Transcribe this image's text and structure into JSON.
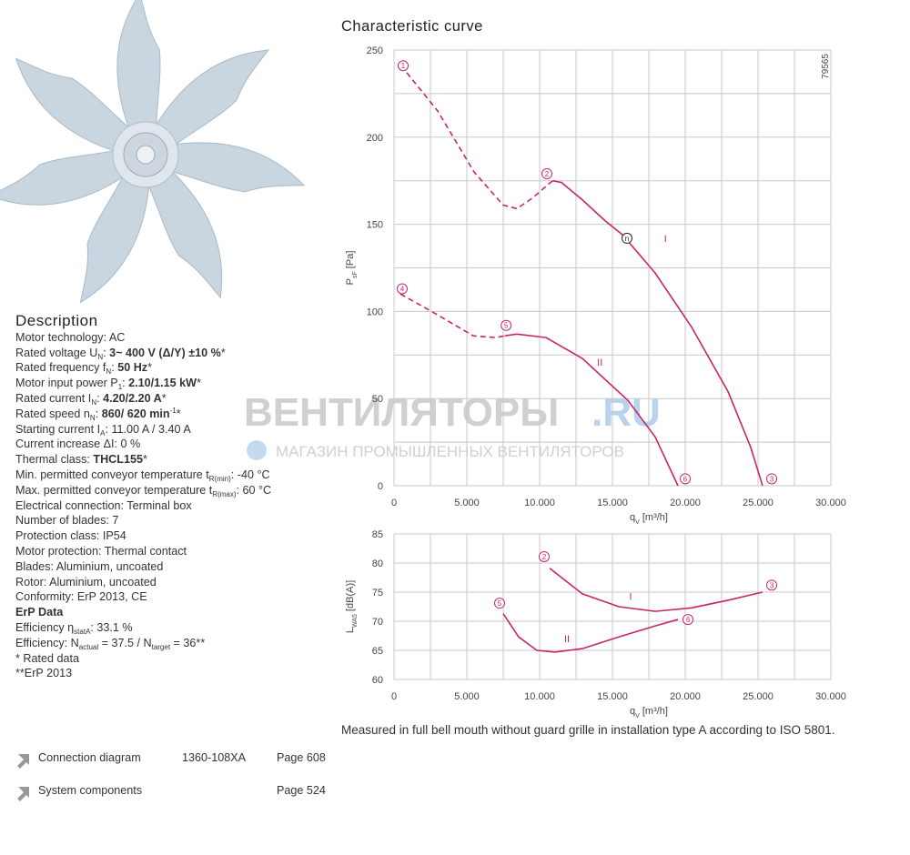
{
  "description": {
    "title": "Description",
    "lines": [
      [
        [
          "n",
          "Motor technology: AC"
        ]
      ],
      [
        [
          "n",
          "Rated voltage U"
        ],
        [
          "sub",
          "N"
        ],
        [
          "n",
          ": "
        ],
        [
          "b",
          "3~ 400 V (Δ/Y) ±10 %"
        ],
        [
          "n",
          "*"
        ]
      ],
      [
        [
          "n",
          "Rated frequency f"
        ],
        [
          "sub",
          "N"
        ],
        [
          "n",
          ": "
        ],
        [
          "b",
          "50 Hz"
        ],
        [
          "n",
          "*"
        ]
      ],
      [
        [
          "n",
          "Motor input power P"
        ],
        [
          "sub",
          "1"
        ],
        [
          "n",
          ": "
        ],
        [
          "b",
          "2.10/1.15 kW"
        ],
        [
          "n",
          "*"
        ]
      ],
      [
        [
          "n",
          "Rated current I"
        ],
        [
          "sub",
          "N"
        ],
        [
          "n",
          ": "
        ],
        [
          "b",
          "4.20/2.20 A"
        ],
        [
          "n",
          "*"
        ]
      ],
      [
        [
          "n",
          "Rated speed n"
        ],
        [
          "sub",
          "N"
        ],
        [
          "n",
          ": "
        ],
        [
          "b",
          "860/ 620 min"
        ],
        [
          "sup",
          "-1"
        ],
        [
          "n",
          "*"
        ]
      ],
      [
        [
          "n",
          "Starting current I"
        ],
        [
          "sub",
          "A"
        ],
        [
          "n",
          ": 11.00 A / 3.40 A"
        ]
      ],
      [
        [
          "n",
          "Current increase ΔI: 0 %"
        ]
      ],
      [
        [
          "n",
          "Thermal class: "
        ],
        [
          "b",
          "THCL155"
        ],
        [
          "n",
          "*"
        ]
      ],
      [
        [
          "n",
          "Min. permitted conveyor temperature t"
        ],
        [
          "sub",
          "R(min)"
        ],
        [
          "n",
          ": -40 °C"
        ]
      ],
      [
        [
          "n",
          "Max. permitted conveyor temperature t"
        ],
        [
          "sub",
          "R(max)"
        ],
        [
          "n",
          ": 60 °C"
        ]
      ],
      [
        [
          "n",
          "Electrical connection: Terminal box"
        ]
      ],
      [
        [
          "n",
          "Number of blades: 7"
        ]
      ],
      [
        [
          "n",
          "Protection class: IP54"
        ]
      ],
      [
        [
          "n",
          "Motor protection: Thermal contact"
        ]
      ],
      [
        [
          "n",
          "Blades: Aluminium, uncoated"
        ]
      ],
      [
        [
          "n",
          "Rotor: Aluminium, uncoated"
        ]
      ],
      [
        [
          "n",
          "Conformity: ErP 2013, CE"
        ]
      ],
      [
        [
          "b",
          "ErP Data"
        ]
      ],
      [
        [
          "n",
          "Efficiency η"
        ],
        [
          "sub",
          "statA"
        ],
        [
          "n",
          ": 33.1 %"
        ]
      ],
      [
        [
          "n",
          "Efficiency: N"
        ],
        [
          "sub",
          "actual"
        ],
        [
          "n",
          " = 37.5 / N"
        ],
        [
          "sub",
          "target"
        ],
        [
          "n",
          " = 36**"
        ]
      ],
      [
        [
          "n",
          "* Rated data"
        ]
      ],
      [
        [
          "n",
          "**ErP 2013"
        ]
      ]
    ]
  },
  "links": [
    {
      "label": "Connection diagram",
      "code": "1360-108XA",
      "page": "Page 608"
    },
    {
      "label": "System components",
      "page": "Page 524"
    }
  ],
  "watermark": {
    "brand": "ВЕНТИЛЯТОРЫ",
    "domain": ".RU",
    "tagline": "МАГАЗИН ПРОМЫШЛЕННЫХ ВЕНТИЛЯТОРОВ"
  },
  "characteristic": {
    "title": "Characteristic curve",
    "note": "Measured in full bell mouth without guard grille in installation type A according to ISO 5801.",
    "color": "#c8246e",
    "charts": [
      {
        "code": "79565",
        "ylabel": [
          [
            "n",
            "P"
          ],
          [
            "sub",
            "sF"
          ],
          [
            "n",
            " [Pa]"
          ]
        ],
        "xlabel": [
          [
            "n",
            "q"
          ],
          [
            "sub",
            "V"
          ],
          [
            "n",
            " [m³/h]"
          ]
        ],
        "xlim": [
          0,
          30000
        ],
        "ylim": [
          0,
          250
        ],
        "xticks": [
          0,
          {
            "value": 5000,
            "label": "5.000"
          },
          {
            "value": 10000,
            "label": "10.000"
          },
          {
            "value": 15000,
            "label": "15.000"
          },
          {
            "value": 20000,
            "label": "20.000"
          },
          {
            "value": 25000,
            "label": "25.000"
          },
          {
            "value": 30000,
            "label": "30.000"
          }
        ],
        "yticks": [
          0,
          50,
          100,
          150,
          200,
          250
        ],
        "x_gridlines": [
          0,
          2500,
          5000,
          7500,
          10000,
          12500,
          15000,
          17500,
          20000,
          22500,
          25000,
          27500,
          30000
        ],
        "y_gridlines": [
          0,
          25,
          50,
          75,
          100,
          125,
          150,
          175,
          200,
          225,
          250
        ],
        "series": [
          {
            "name": "I",
            "label_x": 18640,
            "label_y": 140,
            "segments": [
              {
                "dashed": true,
                "x": [
                  875,
                  3000,
                  5500,
                  7500,
                  8440,
                  9500,
                  10600,
                  10900
                ],
                "y": [
                  237,
                  215,
                  180,
                  161,
                  159,
                  165,
                  173,
                  175
                ]
              },
              {
                "dashed": false,
                "x": [
                  10900,
                  11500,
                  12940,
                  14500,
                  15690,
                  17940,
                  20440,
                  22940,
                  24500,
                  25310
                ],
                "y": [
                  175,
                  174,
                  164,
                  152,
                  144,
                  122,
                  91,
                  54,
                  22,
                  0
                ]
              }
            ]
          },
          {
            "name": "II",
            "label_x": 14140,
            "label_y": 69,
            "segments": [
              {
                "dashed": true,
                "x": [
                  440,
                  3000,
                  5440,
                  7000,
                  7600
                ],
                "y": [
                  110,
                  98,
                  86,
                  85,
                  86
                ]
              },
              {
                "dashed": false,
                "x": [
                  7600,
                  8440,
                  10440,
                  12940,
                  16060,
                  17940,
                  19500
                ],
                "y": [
                  86,
                  87,
                  85,
                  73,
                  49,
                  28,
                  0
                ]
              }
            ]
          }
        ],
        "markers": [
          {
            "text": "1",
            "x": 625,
            "y": 241
          },
          {
            "text": "2",
            "x": 10500,
            "y": 179
          },
          {
            "text": "n",
            "x": 16000,
            "y": 142,
            "black": true
          },
          {
            "text": "3",
            "x": 25940,
            "y": 4
          },
          {
            "text": "4",
            "x": 560,
            "y": 113
          },
          {
            "text": "5",
            "x": 7700,
            "y": 92
          },
          {
            "text": "6",
            "x": 20000,
            "y": 4
          }
        ]
      },
      {
        "ylabel": [
          [
            "n",
            "L"
          ],
          [
            "sub",
            "WA5"
          ],
          [
            "n",
            " [dB(A)]"
          ]
        ],
        "xlabel": [
          [
            "n",
            "q"
          ],
          [
            "sub",
            "V"
          ],
          [
            "n",
            " [m³/h]"
          ]
        ],
        "xlim": [
          0,
          30000
        ],
        "ylim": [
          60,
          85
        ],
        "xticks": [
          0,
          {
            "value": 5000,
            "label": "5.000"
          },
          {
            "value": 10000,
            "label": "10.000"
          },
          {
            "value": 15000,
            "label": "15.000"
          },
          {
            "value": 20000,
            "label": "20.000"
          },
          {
            "value": 25000,
            "label": "25.000"
          },
          {
            "value": 30000,
            "label": "30.000"
          }
        ],
        "yticks": [
          60,
          65,
          70,
          75,
          80,
          85
        ],
        "x_gridlines": [
          0,
          2500,
          5000,
          7500,
          10000,
          12500,
          15000,
          17500,
          20000,
          22500,
          25000,
          27500,
          30000
        ],
        "y_gridlines": [
          60,
          65,
          70,
          75,
          80,
          85
        ],
        "series": [
          {
            "name": "I",
            "label_x": 16250,
            "label_y": 73.7,
            "segments": [
              {
                "dashed": false,
                "x": [
                  10690,
                  12940,
                  15440,
                  17940,
                  20440,
                  22940,
                  25310
                ],
                "y": [
                  79.1,
                  74.7,
                  72.5,
                  71.7,
                  72.3,
                  73.6,
                  75
                ]
              }
            ]
          },
          {
            "name": "II",
            "label_x": 11875,
            "label_y": 66.4,
            "segments": [
              {
                "dashed": false,
                "x": [
                  7500,
                  8560,
                  9810,
                  11060,
                  12940,
                  15440,
                  17940,
                  19500
                ],
                "y": [
                  71.3,
                  67.3,
                  65,
                  64.7,
                  65.3,
                  67.3,
                  69.2,
                  70.3
                ]
              }
            ]
          }
        ],
        "markers": [
          {
            "text": "2",
            "x": 10310,
            "y": 81.1
          },
          {
            "text": "3",
            "x": 25940,
            "y": 76.2
          },
          {
            "text": "5",
            "x": 7250,
            "y": 73.1
          },
          {
            "text": "6",
            "x": 20190,
            "y": 70.3
          }
        ]
      }
    ]
  }
}
